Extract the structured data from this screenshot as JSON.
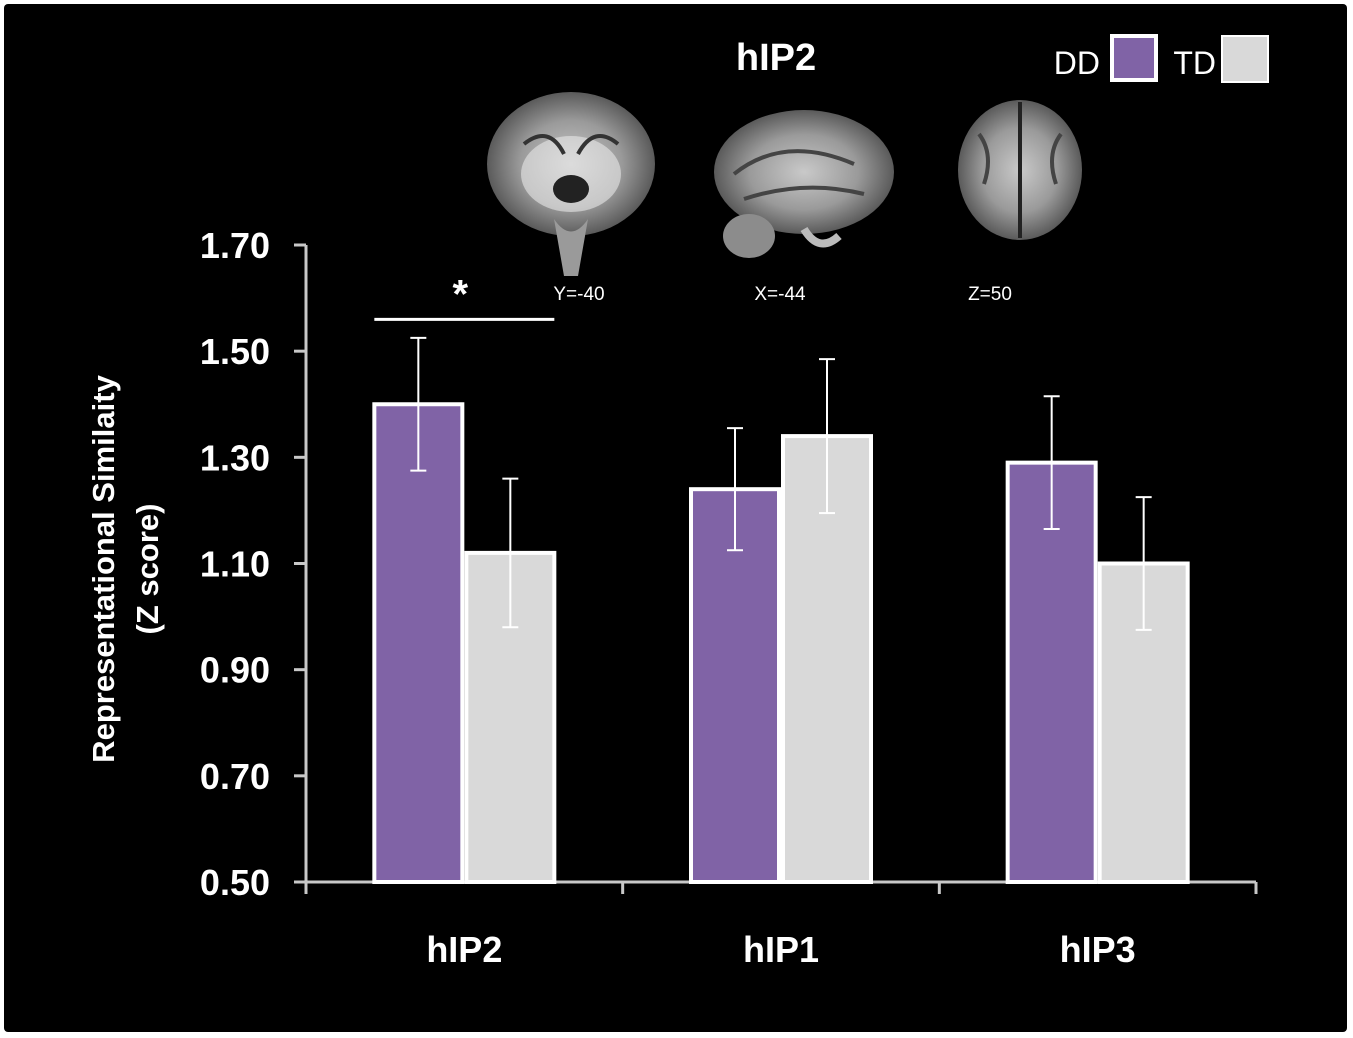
{
  "inset": {
    "title": "hIP2",
    "views": [
      {
        "kind": "coronal-brain-slice",
        "label": "Y=-40"
      },
      {
        "kind": "sagittal-brain-slice",
        "label": "X=-44"
      },
      {
        "kind": "axial-brain-slice",
        "label": "Z=50"
      }
    ]
  },
  "chart_data": {
    "type": "bar",
    "categories": [
      "hIP2",
      "hIP1",
      "hIP3"
    ],
    "series": [
      {
        "name": "DD",
        "color": "#8063a6",
        "values": [
          1.4,
          1.24,
          1.29
        ],
        "errors": [
          0.125,
          0.115,
          0.125
        ]
      },
      {
        "name": "TD",
        "color": "#d9d9d9",
        "values": [
          1.12,
          1.34,
          1.1
        ],
        "errors": [
          0.14,
          0.145,
          0.125
        ]
      }
    ],
    "ylabel": [
      "Representational Similaity",
      "(Z score)"
    ],
    "ylim": [
      0.5,
      1.7
    ],
    "yticks": [
      "0.50",
      "0.70",
      "0.90",
      "1.10",
      "1.30",
      "1.50",
      "1.70"
    ],
    "legend_position": "top-right",
    "annotation": {
      "text": "*",
      "category": "hIP2"
    }
  }
}
